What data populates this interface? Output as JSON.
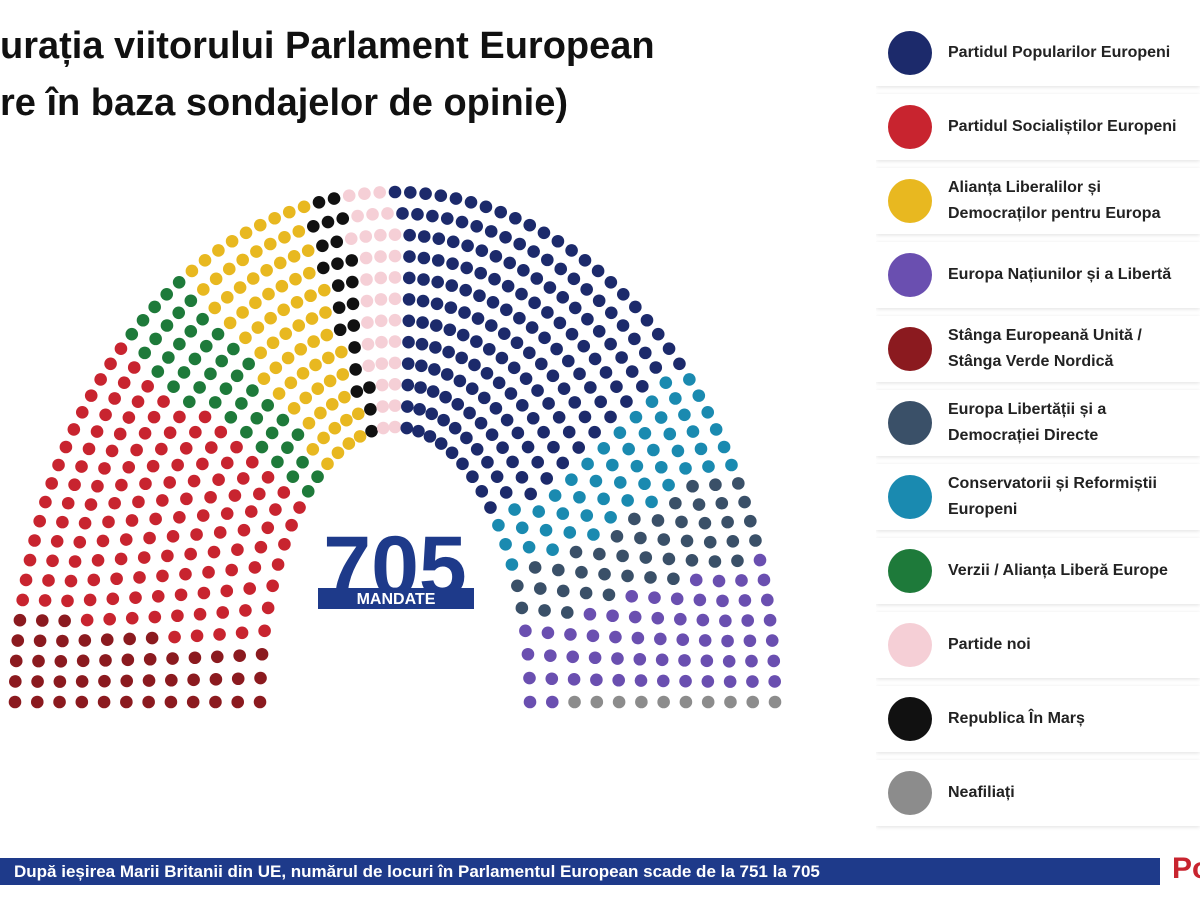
{
  "chart_data": {
    "type": "parliament",
    "title_lines": [
      "urația viitorului Parlament European",
      "re în baza sondajelor de opinie)"
    ],
    "total_seats": 705,
    "total_label": "MANDATE",
    "series": [
      {
        "name": "Partidul Popularilor Europeni",
        "color": "#1c2a6b",
        "seats": 185
      },
      {
        "name": "Partidul Socialiștilor Europeni",
        "color": "#c8242f",
        "seats": 135
      },
      {
        "name": "Alianța Liberalilor și Democraților pentru Europa",
        "color": "#e8b820",
        "seats": 75
      },
      {
        "name": "Europa Națiunilor și a Libertă",
        "color": "#6a4fb0",
        "seats": 59
      },
      {
        "name": "Stânga Europeană Unită / Stânga Verde Nordică",
        "color": "#8b1a1f",
        "seats": 46
      },
      {
        "name": "Europa Libertății și a Democrației Directe",
        "color": "#3a5068",
        "seats": 43
      },
      {
        "name": "Conservatorii și Reformiștii Europeni",
        "color": "#1a8ab0",
        "seats": 51
      },
      {
        "name": "Verzii / Alianța Liberă Europe",
        "color": "#1e7a3a",
        "seats": 45
      },
      {
        "name": "Partide noi",
        "color": "#f5cfd6",
        "seats": 34
      },
      {
        "name": "Republica În Marș",
        "color": "#111111",
        "seats": 22
      },
      {
        "name": "Neafiliați",
        "color": "#8c8c8c",
        "seats": 10
      }
    ],
    "seating_order": [
      4,
      1,
      7,
      2,
      9,
      8,
      0,
      6,
      5,
      3,
      10
    ],
    "footer": "După ieșirea Marii Britanii din UE, numărul de locuri în Parlamentul European scade de la 751 la 705",
    "logo": "Po"
  }
}
